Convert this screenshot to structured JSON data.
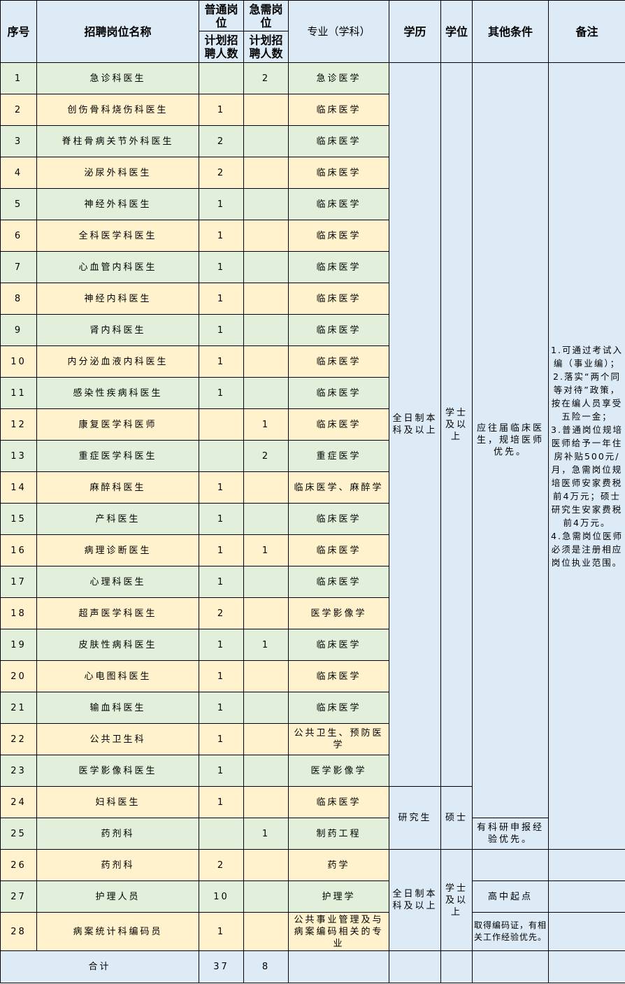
{
  "header": {
    "seq": "序号",
    "name": "招聘岗位名称",
    "regular_group": "普通岗位",
    "urgent_group": "急需岗位",
    "regular_count": "计划招聘人数",
    "urgent_count": "计划招聘人数",
    "major": "专业（学科）",
    "education": "学历",
    "degree": "学位",
    "other": "其他条件",
    "remarks": "备注"
  },
  "rows": [
    {
      "seq": "1",
      "name": "急诊科医生",
      "regular": "",
      "urgent": "2",
      "major": "急诊医学"
    },
    {
      "seq": "2",
      "name": "创伤骨科烧伤科医生",
      "regular": "1",
      "urgent": "",
      "major": "临床医学"
    },
    {
      "seq": "3",
      "name": "脊柱骨病关节外科医生",
      "regular": "2",
      "urgent": "",
      "major": "临床医学"
    },
    {
      "seq": "4",
      "name": "泌尿外科医生",
      "regular": "2",
      "urgent": "",
      "major": "临床医学"
    },
    {
      "seq": "5",
      "name": "神经外科医生",
      "regular": "1",
      "urgent": "",
      "major": "临床医学"
    },
    {
      "seq": "6",
      "name": "全科医学科医生",
      "regular": "1",
      "urgent": "",
      "major": "临床医学"
    },
    {
      "seq": "7",
      "name": "心血管内科医生",
      "regular": "1",
      "urgent": "",
      "major": "临床医学"
    },
    {
      "seq": "8",
      "name": "神经内科医生",
      "regular": "1",
      "urgent": "",
      "major": "临床医学"
    },
    {
      "seq": "9",
      "name": "肾内科医生",
      "regular": "1",
      "urgent": "",
      "major": "临床医学"
    },
    {
      "seq": "10",
      "name": "内分泌血液内科医生",
      "regular": "1",
      "urgent": "",
      "major": "临床医学"
    },
    {
      "seq": "11",
      "name": "感染性疾病科医生",
      "regular": "1",
      "urgent": "",
      "major": "临床医学"
    },
    {
      "seq": "12",
      "name": "康复医学科医师",
      "regular": "",
      "urgent": "1",
      "major": "临床医学"
    },
    {
      "seq": "13",
      "name": "重症医学科医生",
      "regular": "",
      "urgent": "2",
      "major": "重症医学"
    },
    {
      "seq": "14",
      "name": "麻醉科医生",
      "regular": "1",
      "urgent": "",
      "major": "临床医学、麻醉学"
    },
    {
      "seq": "15",
      "name": "产科医生",
      "regular": "1",
      "urgent": "",
      "major": "临床医学"
    },
    {
      "seq": "16",
      "name": "病理诊断医生",
      "regular": "1",
      "urgent": "1",
      "major": "临床医学"
    },
    {
      "seq": "17",
      "name": "心理科医生",
      "regular": "1",
      "urgent": "",
      "major": "临床医学"
    },
    {
      "seq": "18",
      "name": "超声医学科医生",
      "regular": "2",
      "urgent": "",
      "major": "医学影像学"
    },
    {
      "seq": "19",
      "name": "皮肤性病科医生",
      "regular": "1",
      "urgent": "1",
      "major": "临床医学"
    },
    {
      "seq": "20",
      "name": "心电图科医生",
      "regular": "1",
      "urgent": "",
      "major": "临床医学"
    },
    {
      "seq": "21",
      "name": "输血科医生",
      "regular": "1",
      "urgent": "",
      "major": "临床医学"
    },
    {
      "seq": "22",
      "name": "公共卫生科",
      "regular": "1",
      "urgent": "",
      "major": "公共卫生、预防医学"
    },
    {
      "seq": "23",
      "name": "医学影像科医生",
      "regular": "1",
      "urgent": "",
      "major": "医学影像学"
    },
    {
      "seq": "24",
      "name": "妇科医生",
      "regular": "1",
      "urgent": "",
      "major": "临床医学"
    },
    {
      "seq": "25",
      "name": "药剂科",
      "regular": "",
      "urgent": "1",
      "major": "制药工程"
    },
    {
      "seq": "26",
      "name": "药剂科",
      "regular": "2",
      "urgent": "",
      "major": "药学"
    },
    {
      "seq": "27",
      "name": "护理人员",
      "regular": "10",
      "urgent": "",
      "major": "护理学"
    },
    {
      "seq": "28",
      "name": "病案统计科编码员",
      "regular": "1",
      "urgent": "",
      "major": "公共事业管理及与病案编码相关的专业"
    }
  ],
  "education_groups": [
    "全日制本科及以上",
    "研究生",
    "全日制本科及以上"
  ],
  "degree_groups": [
    "学士及以上",
    "硕士",
    "学士及以上"
  ],
  "other_groups": [
    "应往届临床医生，规培医师优先。",
    "有科研申报经验优先。",
    "",
    "高中起点",
    "取得编码证，有相关工作经验优先。"
  ],
  "remarks_groups": [
    "1.可通过考试入编（事业编）；\n2.落实“两个同等对待”政策，按在编人员享受五险一金；\n3.普通岗位规培医师给予一年住房补贴500元/月，急需岗位规培医师安家费税前4万元；硕士研究生安家费税前4万元。\n4.急需岗位医师必须是注册相应岗位执业范围。",
    "",
    "",
    ""
  ],
  "total": {
    "label": "合计",
    "regular": "37",
    "urgent": "8"
  },
  "colors": {
    "header": "#ddebf7",
    "odd_row": "#e2efda",
    "even_row": "#fff2cc",
    "merged": "#ddebf7"
  }
}
